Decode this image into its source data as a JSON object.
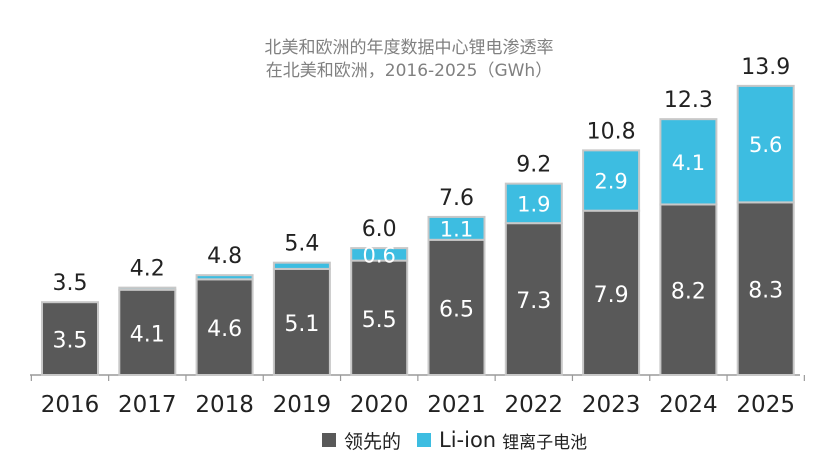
{
  "chart_data": {
    "type": "bar",
    "stacked": true,
    "title": "北美和欧洲的年度数据中心锂电渗透率",
    "subtitle": "在北美和欧洲，2016-2025（GWh）",
    "categories": [
      "2016",
      "2017",
      "2018",
      "2019",
      "2020",
      "2021",
      "2022",
      "2023",
      "2024",
      "2025"
    ],
    "series": [
      {
        "name": "领先的",
        "color": "#595959",
        "values": [
          3.5,
          4.1,
          4.6,
          5.1,
          5.5,
          6.5,
          7.3,
          7.9,
          8.2,
          8.3
        ]
      },
      {
        "name": "Li-ion",
        "color": "#3DBDE1",
        "values": [
          0.0,
          0.1,
          0.2,
          0.3,
          0.6,
          1.1,
          1.9,
          2.9,
          4.1,
          5.6
        ]
      }
    ],
    "bottom_labels": [
      "3.5",
      "4.1",
      "4.6",
      "5.1",
      "5.5",
      "6.5",
      "7.3",
      "7.9",
      "8.2",
      "8.3"
    ],
    "top_labels": [
      "",
      "",
      "",
      "",
      "0.6",
      "1.1",
      "1.9",
      "2.9",
      "4.1",
      "5.6"
    ],
    "totals": [
      "3.5",
      "4.2",
      "4.8",
      "5.4",
      "6.0",
      "7.6",
      "9.2",
      "10.8",
      "12.3",
      "13.9"
    ],
    "legend": {
      "position": "bottom",
      "items": [
        {
          "label": "领先的",
          "color": "#595959"
        },
        {
          "label": "Li-ion",
          "color": "#3DBDE1",
          "suffix": "锂离子电池"
        }
      ]
    },
    "ylim": [
      0,
      14.5
    ],
    "grid": false
  }
}
